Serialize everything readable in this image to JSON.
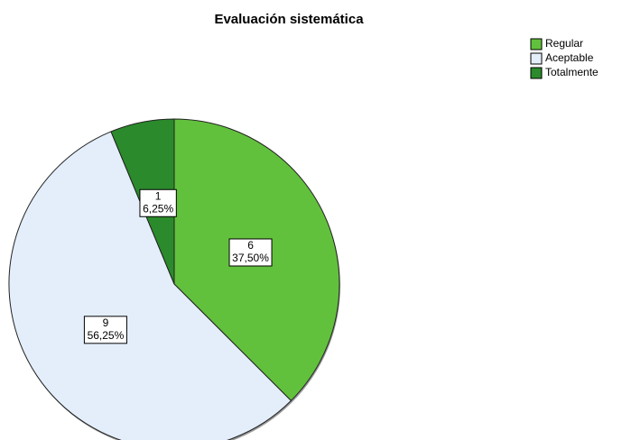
{
  "chart_data": {
    "type": "pie",
    "title": "Evaluación sistemática",
    "categories": [
      "Regular",
      "Aceptable",
      "Totalmente"
    ],
    "values": [
      6,
      9,
      1
    ],
    "percents": [
      37.5,
      56.25,
      6.25
    ],
    "percent_labels": [
      "37,50%",
      "56,25%",
      "6,25%"
    ],
    "colors": [
      "#62c13c",
      "#e3eefa",
      "#2b8a2b"
    ],
    "legend": "top-right"
  }
}
